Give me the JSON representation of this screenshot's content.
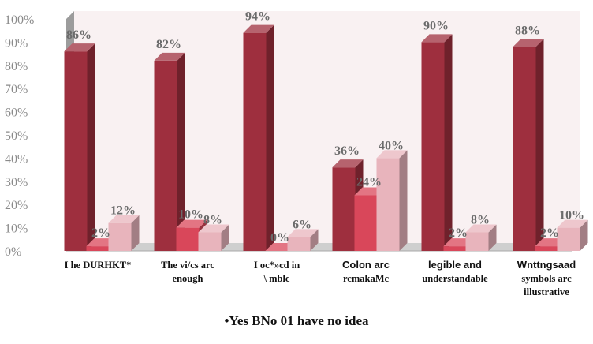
{
  "chart_data": {
    "type": "bar",
    "title": "",
    "xlabel": "",
    "ylabel": "",
    "ylim": [
      0,
      100
    ],
    "y_ticks": [
      "0%",
      "10%",
      "20%",
      "30%",
      "40%",
      "50%",
      "60%",
      "70%",
      "80%",
      "90%",
      "100%"
    ],
    "categories": [
      [
        "I  he  DURHKT*",
        ""
      ],
      [
        "The  vi/cs  arc",
        "enough"
      ],
      [
        "I  oc*»cd  in",
        "\\ mblc"
      ],
      [
        "Colon arc",
        "rcmakaMc"
      ],
      [
        "legible and",
        "understandable"
      ],
      [
        "Wnttngsaad",
        "symbols arc",
        "illustrative"
      ]
    ],
    "series": [
      {
        "name": "Yes",
        "color": "#9e2f3e",
        "values": [
          86,
          82,
          94,
          36,
          90,
          88
        ]
      },
      {
        "name": "No",
        "color": "#d9475a",
        "values": [
          2,
          10,
          0,
          24,
          2,
          2
        ]
      },
      {
        "name": "I have no idea",
        "color": "#e8b4bc",
        "values": [
          12,
          8,
          6,
          40,
          8,
          10
        ]
      }
    ],
    "data_labels": [
      [
        "86%",
        "2%",
        "12%"
      ],
      [
        "82%",
        "10%",
        "8%"
      ],
      [
        "94%",
        "0%",
        "6%"
      ],
      [
        "36%",
        "24%",
        "40%"
      ],
      [
        "90%",
        "2%",
        "8%"
      ],
      [
        "88%",
        "2%",
        "10%"
      ]
    ],
    "legend_text": "•Yes   BNo   01 have no idea",
    "legend_position": "bottom",
    "grid": false
  }
}
